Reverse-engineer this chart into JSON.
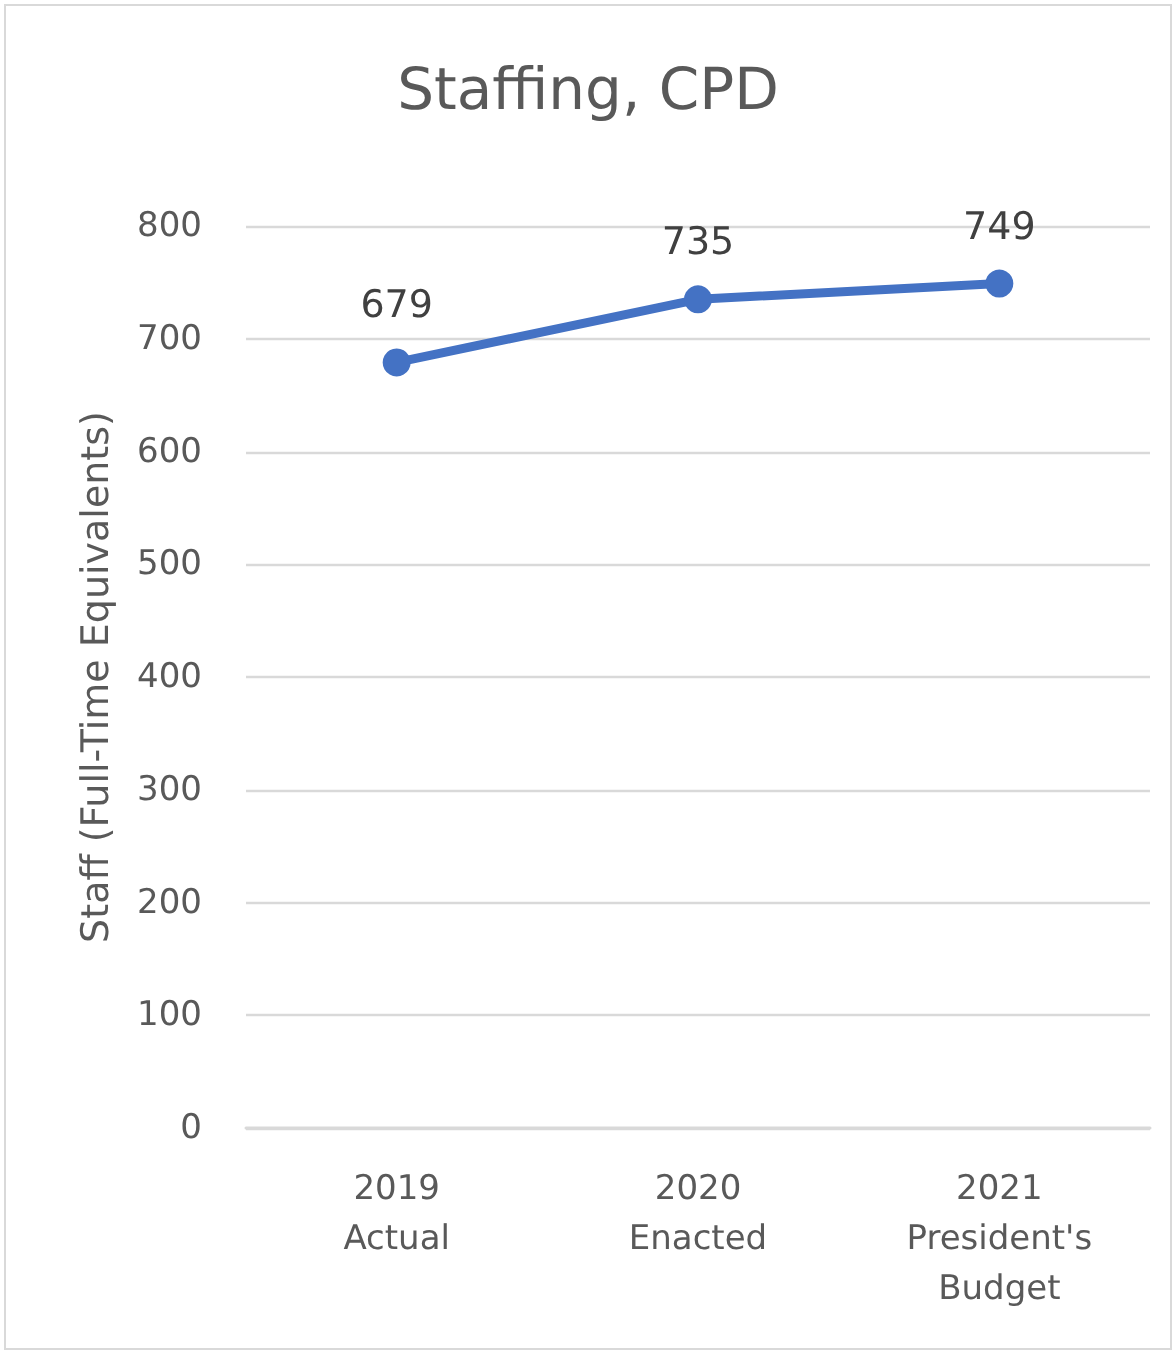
{
  "chart_data": {
    "type": "line",
    "title": "Staffing, CPD",
    "ylabel": "Staff (Full-Time Equivalents)",
    "categories": [
      "2019\nActual",
      "2020\nEnacted",
      "2021\nPresident's\nBudget"
    ],
    "series": [
      {
        "color": "#4472c4",
        "values": [
          679,
          735,
          749
        ]
      }
    ],
    "ylim": [
      0,
      800
    ],
    "yticks": [
      0,
      100,
      200,
      300,
      400,
      500,
      600,
      700,
      800
    ],
    "grid": "y",
    "marker": "circle",
    "line_style": "solid",
    "data_labels": true
  }
}
